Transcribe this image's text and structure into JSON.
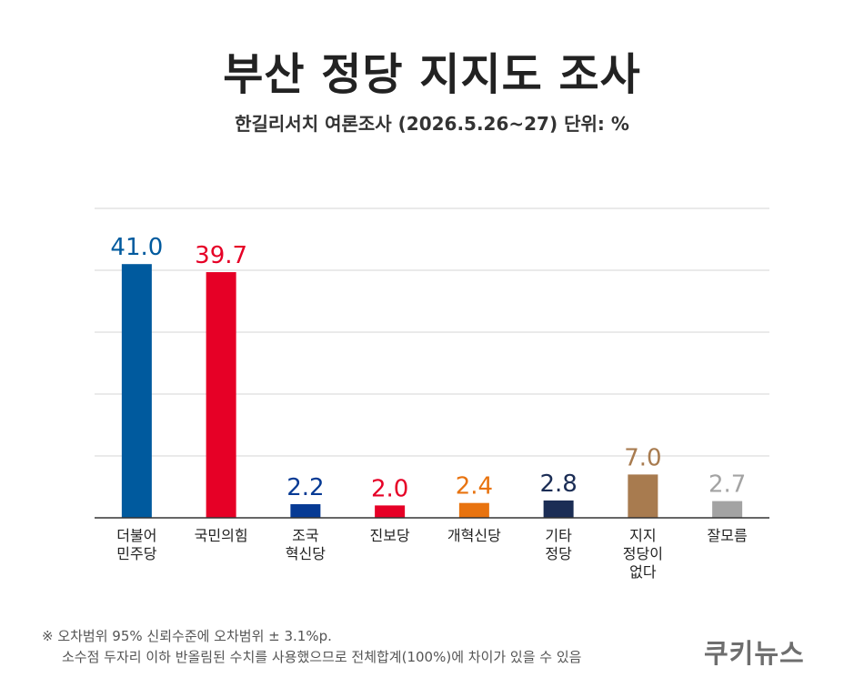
{
  "title": "부산 정당 지지도 조사",
  "subtitle": "한길리서치 여론조사 (2026.5.26~27) 단위: %",
  "footnote": {
    "line1": "※ 오차범위 95% 신뢰수준에 오차범위 ± 3.1%p.",
    "line2": "소수점 두자리 이하 반올림된 수치를 사용했으므로 전체합계(100%)에 차이가 있을 수 있음"
  },
  "logo": "쿠키뉴스",
  "chart_data": {
    "type": "bar",
    "categories": [
      [
        "더불어",
        "민주당"
      ],
      [
        "국민의힘"
      ],
      [
        "조국",
        "혁신당"
      ],
      [
        "진보당"
      ],
      [
        "개혁신당"
      ],
      [
        "기타",
        "정당"
      ],
      [
        "지지",
        "정당이",
        "없다"
      ],
      [
        "잘모름"
      ]
    ],
    "values": [
      41.0,
      39.7,
      2.2,
      2.0,
      2.4,
      2.8,
      7.0,
      2.7
    ],
    "value_labels": [
      "41.0",
      "39.7",
      "2.2",
      "2.0",
      "2.4",
      "2.8",
      "7.0",
      "2.7"
    ],
    "colors": [
      "#005a9e",
      "#e60026",
      "#063a94",
      "#e60026",
      "#e8730f",
      "#1b2d55",
      "#a87b4f",
      "#a3a3a3"
    ],
    "ylim": [
      0,
      50
    ],
    "grid": true
  }
}
